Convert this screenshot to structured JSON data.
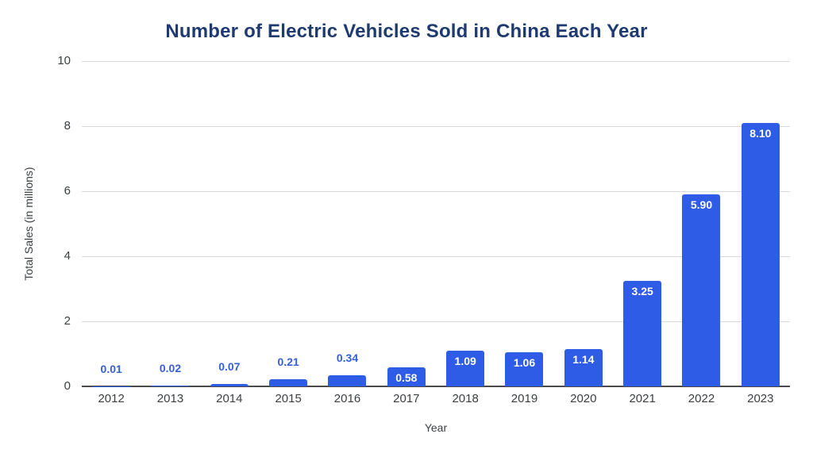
{
  "chart_data": {
    "type": "bar",
    "title": "Number of Electric Vehicles Sold in China Each Year",
    "xlabel": "Year",
    "ylabel": "Total Sales (in millions)",
    "categories": [
      "2012",
      "2013",
      "2014",
      "2015",
      "2016",
      "2017",
      "2018",
      "2019",
      "2020",
      "2021",
      "2022",
      "2023"
    ],
    "values": [
      0.01,
      0.02,
      0.07,
      0.21,
      0.34,
      0.58,
      1.09,
      1.06,
      1.14,
      3.25,
      5.9,
      8.1
    ],
    "value_labels": [
      "0.01",
      "0.02",
      "0.07",
      "0.21",
      "0.34",
      "0.58",
      "1.09",
      "1.06",
      "1.14",
      "3.25",
      "5.90",
      "8.10"
    ],
    "label_placement": [
      "above",
      "above",
      "above",
      "above",
      "above",
      "inside",
      "inside",
      "inside",
      "inside",
      "inside",
      "inside",
      "inside"
    ],
    "ylim": [
      0,
      10
    ],
    "yticks": [
      0,
      2,
      4,
      6,
      8,
      10
    ],
    "grid": true,
    "legend": false,
    "colors": {
      "bar": "#2E5CE6",
      "value_label_above": "#3560D4",
      "value_label_inside": "#FFFFFF",
      "title": "#1E3A70",
      "gridline": "#DADADA",
      "axis_line": "#4A4A4A",
      "tick_label": "#3C4043",
      "axis_title": "#3C4043",
      "background": "#FFFFFF"
    }
  }
}
